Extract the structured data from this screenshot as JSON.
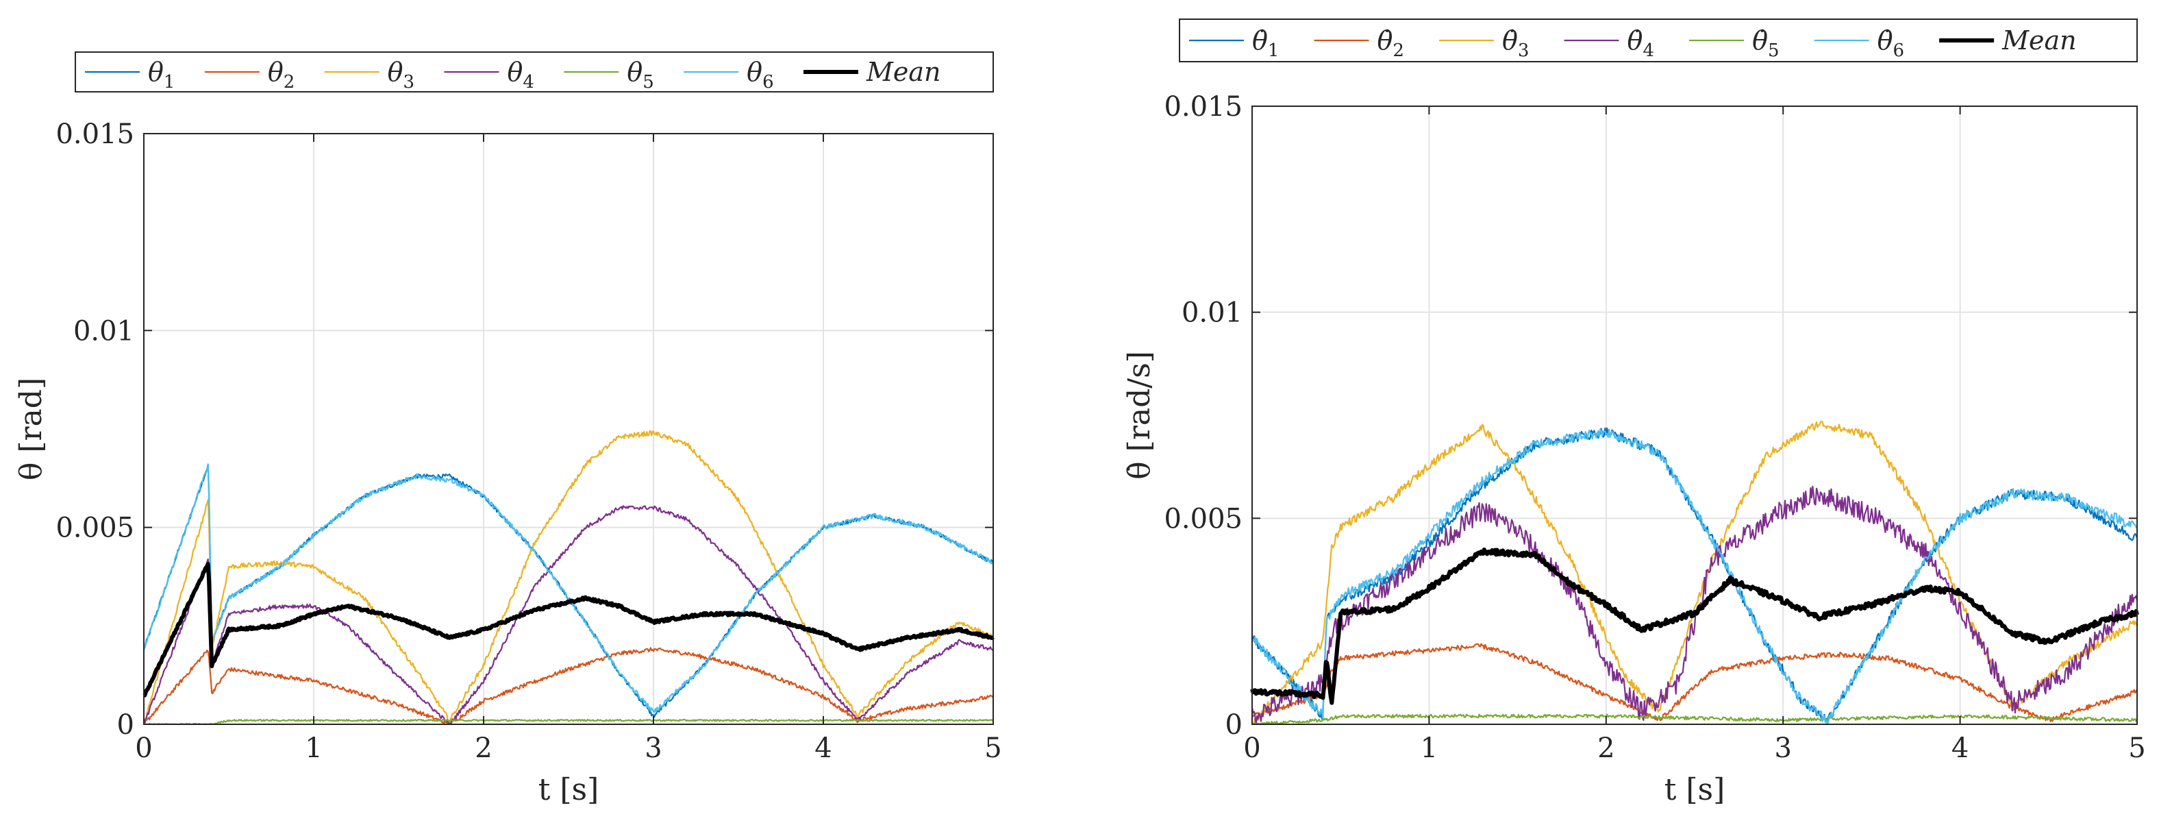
{
  "chart_data": [
    {
      "type": "line",
      "xlabel": "t [s]",
      "ylabel": "θ [rad]",
      "xlim": [
        0,
        5
      ],
      "ylim": [
        0,
        0.015
      ],
      "xticks": [
        0,
        1,
        2,
        3,
        4,
        5
      ],
      "xtick_labels": [
        "0",
        "1",
        "2",
        "3",
        "4",
        "5"
      ],
      "yticks": [
        0,
        0.005,
        0.01,
        0.015
      ],
      "ytick_labels": [
        "0",
        "0.005",
        "0.01",
        "0.015"
      ],
      "grid": true,
      "legend_position": "top",
      "legend_orientation": "horizontal",
      "series": [
        {
          "name": "θ",
          "sub": "1",
          "color": "#0072BD",
          "width": 2.2,
          "x": [
            0,
            0.38,
            0.4,
            0.5,
            0.8,
            1.0,
            1.3,
            1.6,
            1.8,
            2.0,
            2.3,
            2.6,
            2.8,
            3.0,
            3.3,
            3.6,
            4.0,
            4.3,
            4.6,
            5.0
          ],
          "y": [
            0.0019,
            0.0066,
            0.0021,
            0.0032,
            0.004,
            0.0048,
            0.0058,
            0.0063,
            0.0063,
            0.0058,
            0.0044,
            0.0026,
            0.0013,
            0.0002,
            0.0015,
            0.0033,
            0.005,
            0.0053,
            0.005,
            0.0041
          ]
        },
        {
          "name": "θ",
          "sub": "2",
          "color": "#D95319",
          "width": 2.2,
          "x": [
            0,
            0.38,
            0.4,
            0.5,
            1.0,
            1.5,
            1.8,
            2.0,
            2.5,
            2.8,
            3.0,
            3.2,
            3.6,
            4.0,
            4.2,
            4.5,
            5.0
          ],
          "y": [
            0.0,
            0.0019,
            0.0008,
            0.0014,
            0.0011,
            0.0005,
            0.0,
            0.0006,
            0.0014,
            0.0018,
            0.0019,
            0.0018,
            0.0014,
            0.0007,
            0.0001,
            0.0004,
            0.0007
          ]
        },
        {
          "name": "θ",
          "sub": "3",
          "color": "#EDB120",
          "width": 2.2,
          "x": [
            0,
            0.38,
            0.4,
            0.5,
            0.8,
            1.0,
            1.3,
            1.6,
            1.8,
            2.0,
            2.3,
            2.6,
            2.8,
            3.0,
            3.2,
            3.5,
            3.8,
            4.0,
            4.2,
            4.5,
            4.8,
            5.0
          ],
          "y": [
            0.0,
            0.0057,
            0.0019,
            0.004,
            0.0041,
            0.004,
            0.0032,
            0.0014,
            0.0001,
            0.0015,
            0.0046,
            0.0066,
            0.0073,
            0.0074,
            0.0071,
            0.0057,
            0.0033,
            0.0015,
            0.0002,
            0.0016,
            0.0026,
            0.0022
          ]
        },
        {
          "name": "θ",
          "sub": "4",
          "color": "#7E2F8E",
          "width": 2.2,
          "x": [
            0,
            0.38,
            0.4,
            0.5,
            0.8,
            1.0,
            1.2,
            1.5,
            1.8,
            2.0,
            2.3,
            2.6,
            2.8,
            3.0,
            3.2,
            3.5,
            3.8,
            4.0,
            4.2,
            4.5,
            4.8,
            5.0
          ],
          "y": [
            0.0,
            0.0042,
            0.0015,
            0.0028,
            0.003,
            0.003,
            0.0025,
            0.0012,
            0.0,
            0.0011,
            0.0035,
            0.005,
            0.0055,
            0.0055,
            0.0052,
            0.004,
            0.0024,
            0.0011,
            0.0001,
            0.0013,
            0.0021,
            0.0019
          ]
        },
        {
          "name": "θ",
          "sub": "5",
          "color": "#77AC30",
          "width": 2.2,
          "x": [
            0,
            0.4,
            0.5,
            1.0,
            2.0,
            3.0,
            4.0,
            5.0
          ],
          "y": [
            0.0,
            0.0,
            0.0001,
            0.0001,
            0.0001,
            0.0001,
            0.0001,
            0.0001
          ]
        },
        {
          "name": "θ",
          "sub": "6",
          "color": "#4DBEEE",
          "width": 2.2,
          "x": [
            0,
            0.38,
            0.4,
            0.5,
            0.8,
            1.0,
            1.3,
            1.6,
            1.8,
            2.0,
            2.3,
            2.6,
            2.8,
            3.0,
            3.3,
            3.6,
            4.0,
            4.3,
            4.6,
            5.0
          ],
          "y": [
            0.0019,
            0.0066,
            0.0021,
            0.0032,
            0.004,
            0.0048,
            0.0058,
            0.0063,
            0.0062,
            0.0058,
            0.0044,
            0.0026,
            0.0013,
            0.0003,
            0.0015,
            0.0033,
            0.005,
            0.0053,
            0.005,
            0.0041
          ]
        },
        {
          "name": "Mean",
          "color": "#000000",
          "width": 6,
          "x": [
            0,
            0.38,
            0.4,
            0.5,
            0.8,
            1.0,
            1.2,
            1.5,
            1.8,
            2.0,
            2.3,
            2.6,
            2.8,
            3.0,
            3.3,
            3.6,
            4.0,
            4.2,
            4.5,
            4.8,
            5.0
          ],
          "y": [
            0.0007,
            0.0041,
            0.0015,
            0.0024,
            0.0025,
            0.0028,
            0.003,
            0.0027,
            0.0022,
            0.0024,
            0.0029,
            0.0032,
            0.003,
            0.0026,
            0.0028,
            0.0028,
            0.0023,
            0.0019,
            0.0022,
            0.0024,
            0.0022
          ]
        }
      ]
    },
    {
      "type": "line",
      "xlabel": "t [s]",
      "ylabel": "θ̇ [rad/s]",
      "xlim": [
        0,
        5
      ],
      "ylim": [
        0,
        0.015
      ],
      "xticks": [
        0,
        1,
        2,
        3,
        4,
        5
      ],
      "xtick_labels": [
        "0",
        "1",
        "2",
        "3",
        "4",
        "5"
      ],
      "yticks": [
        0,
        0.005,
        0.01,
        0.015
      ],
      "ytick_labels": [
        "0",
        "0.005",
        "0.01",
        "0.015"
      ],
      "grid": true,
      "legend_position": "top",
      "legend_orientation": "horizontal",
      "series": [
        {
          "name": "θ̇",
          "sub": "1",
          "color": "#0072BD",
          "width": 2.2,
          "x": [
            0,
            0.4,
            0.42,
            0.5,
            0.8,
            1.0,
            1.3,
            1.6,
            2.0,
            2.3,
            2.6,
            2.9,
            3.1,
            3.25,
            3.5,
            3.8,
            4.0,
            4.3,
            4.6,
            5.0
          ],
          "y": [
            0.0021,
            0.0002,
            0.0025,
            0.003,
            0.0036,
            0.0044,
            0.0058,
            0.0068,
            0.0071,
            0.0066,
            0.0045,
            0.002,
            0.0006,
            0.0001,
            0.0018,
            0.004,
            0.005,
            0.0056,
            0.0055,
            0.0045
          ]
        },
        {
          "name": "θ̇",
          "sub": "2",
          "color": "#D95319",
          "width": 2.2,
          "x": [
            0,
            0.4,
            0.45,
            0.5,
            1.0,
            1.3,
            1.6,
            2.0,
            2.3,
            2.6,
            3.0,
            3.3,
            3.6,
            4.0,
            4.3,
            4.5,
            5.0
          ],
          "y": [
            0.0002,
            0.0007,
            0.0013,
            0.0016,
            0.0018,
            0.0019,
            0.0015,
            0.0007,
            0.0001,
            0.0013,
            0.0016,
            0.0017,
            0.0016,
            0.0011,
            0.0004,
            0.0001,
            0.0008
          ]
        },
        {
          "name": "θ̇",
          "sub": "3",
          "color": "#EDB120",
          "width": 2.2,
          "x": [
            0,
            0.4,
            0.45,
            0.5,
            0.8,
            1.0,
            1.3,
            1.5,
            1.8,
            2.1,
            2.3,
            2.6,
            2.9,
            3.2,
            3.5,
            3.8,
            4.0,
            4.3,
            4.6,
            5.0
          ],
          "y": [
            0.0,
            0.002,
            0.0043,
            0.0048,
            0.0055,
            0.0063,
            0.0072,
            0.0062,
            0.004,
            0.0012,
            0.0003,
            0.004,
            0.0065,
            0.0073,
            0.007,
            0.005,
            0.003,
            0.0004,
            0.0015,
            0.0025
          ]
        },
        {
          "name": "θ̇",
          "sub": "4",
          "color": "#7E2F8E",
          "width": 2.2,
          "x": [
            0,
            0.4,
            0.45,
            0.5,
            0.8,
            1.0,
            1.3,
            1.5,
            1.8,
            2.0,
            2.2,
            2.4,
            2.6,
            3.0,
            3.2,
            3.5,
            3.8,
            4.0,
            4.3,
            4.6,
            5.0
          ],
          "y": [
            0.0002,
            0.001,
            0.0022,
            0.0025,
            0.0035,
            0.0042,
            0.0052,
            0.0047,
            0.0033,
            0.0015,
            0.0003,
            0.001,
            0.004,
            0.0052,
            0.0056,
            0.0051,
            0.0042,
            0.0028,
            0.0005,
            0.0012,
            0.0032
          ]
        },
        {
          "name": "θ̇",
          "sub": "5",
          "color": "#77AC30",
          "width": 2.2,
          "x": [
            0,
            0.4,
            0.5,
            1.0,
            2.0,
            3.0,
            4.0,
            5.0
          ],
          "y": [
            0.0,
            0.0001,
            0.0002,
            0.0002,
            0.0002,
            0.0001,
            0.0002,
            0.0001
          ]
        },
        {
          "name": "θ̇",
          "sub": "6",
          "color": "#4DBEEE",
          "width": 2.2,
          "x": [
            0,
            0.4,
            0.42,
            0.5,
            0.8,
            1.0,
            1.3,
            1.6,
            2.0,
            2.3,
            2.6,
            2.9,
            3.1,
            3.25,
            3.5,
            3.8,
            4.0,
            4.3,
            4.6,
            5.0
          ],
          "y": [
            0.0021,
            0.0002,
            0.0025,
            0.0031,
            0.0037,
            0.0046,
            0.0059,
            0.0068,
            0.0071,
            0.0066,
            0.0045,
            0.002,
            0.0006,
            0.0001,
            0.0018,
            0.004,
            0.005,
            0.0056,
            0.0055,
            0.0048
          ]
        },
        {
          "name": "Mean",
          "color": "#000000",
          "width": 6,
          "x": [
            0,
            0.4,
            0.42,
            0.45,
            0.5,
            0.8,
            1.0,
            1.3,
            1.6,
            1.8,
            2.0,
            2.2,
            2.5,
            2.7,
            3.0,
            3.2,
            3.5,
            3.8,
            4.0,
            4.3,
            4.5,
            4.8,
            5.0
          ],
          "y": [
            0.0008,
            0.0007,
            0.0016,
            0.0005,
            0.0027,
            0.0028,
            0.0033,
            0.0042,
            0.0041,
            0.0034,
            0.0029,
            0.0023,
            0.0027,
            0.0035,
            0.003,
            0.0026,
            0.0029,
            0.0033,
            0.0032,
            0.0022,
            0.002,
            0.0025,
            0.0027
          ]
        }
      ]
    }
  ]
}
